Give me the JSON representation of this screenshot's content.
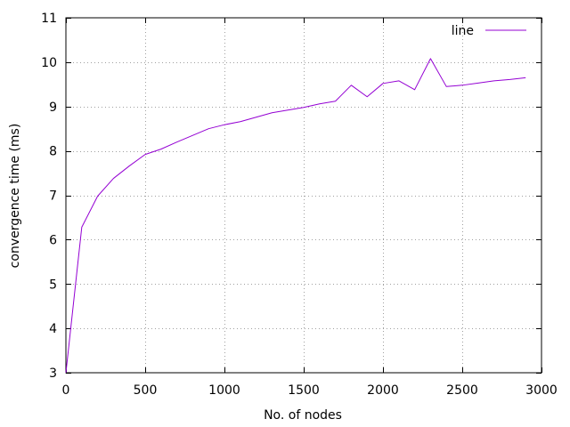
{
  "chart_data": {
    "type": "line",
    "title": "",
    "xlabel": "No. of nodes",
    "ylabel": "convergence time (ms)",
    "xlim": [
      0,
      3000
    ],
    "ylim": [
      3,
      11
    ],
    "xticks": [
      0,
      500,
      1000,
      1500,
      2000,
      2500,
      3000
    ],
    "yticks": [
      3,
      4,
      5,
      6,
      7,
      8,
      9,
      10,
      11
    ],
    "grid": true,
    "legend_position": "top-right",
    "series": [
      {
        "name": "line",
        "color": "#9400d3",
        "x": [
          0,
          100,
          200,
          300,
          400,
          500,
          600,
          700,
          800,
          900,
          1000,
          1100,
          1200,
          1300,
          1400,
          1500,
          1600,
          1700,
          1800,
          1900,
          2000,
          2100,
          2200,
          2300,
          2400,
          2500,
          2600,
          2700,
          2800,
          2900
        ],
        "y": [
          3.0,
          6.28,
          6.98,
          7.38,
          7.66,
          7.92,
          8.04,
          8.2,
          8.35,
          8.5,
          8.59,
          8.66,
          8.76,
          8.86,
          8.92,
          8.98,
          9.06,
          9.12,
          9.48,
          9.22,
          9.52,
          9.58,
          9.38,
          10.08,
          9.45,
          9.48,
          9.53,
          9.58,
          9.61,
          9.65
        ]
      }
    ]
  }
}
